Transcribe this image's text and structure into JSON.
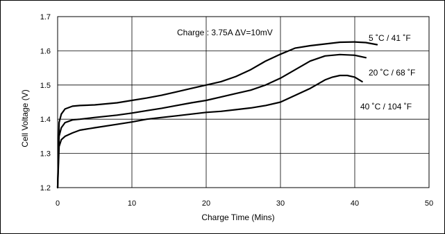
{
  "chart_data": {
    "type": "line",
    "xlabel": "Charge Time (Mins)",
    "ylabel": "Cell Voltage (V)",
    "xlim": [
      0,
      50
    ],
    "ylim": [
      1.2,
      1.7
    ],
    "x_ticks": [
      "0",
      "10",
      "20",
      "30",
      "40",
      "50"
    ],
    "y_ticks": [
      "1.2",
      "1.3",
      "1.4",
      "1.5",
      "1.6",
      "1.7"
    ],
    "grid": true,
    "annotation": "Charge : 3.75A  ΔV=10mV",
    "series": [
      {
        "name": "5 ˚C / 41 ˚F",
        "x": [
          0,
          0.2,
          0.5,
          1,
          2,
          3,
          5,
          8,
          10,
          12,
          14,
          16,
          18,
          20,
          22,
          24,
          26,
          28,
          30,
          32,
          34,
          36,
          38,
          40,
          41.5,
          43
        ],
        "y": [
          1.2,
          1.39,
          1.415,
          1.43,
          1.438,
          1.44,
          1.442,
          1.448,
          1.455,
          1.462,
          1.47,
          1.48,
          1.49,
          1.5,
          1.51,
          1.525,
          1.545,
          1.57,
          1.59,
          1.608,
          1.615,
          1.62,
          1.625,
          1.626,
          1.624,
          1.618
        ]
      },
      {
        "name": "20 ˚C / 68 ˚F",
        "x": [
          0,
          0.2,
          0.5,
          1,
          2,
          3,
          5,
          8,
          10,
          12,
          14,
          16,
          18,
          20,
          22,
          24,
          26,
          28,
          30,
          32,
          34,
          36,
          38,
          40,
          41.5
        ],
        "y": [
          1.2,
          1.35,
          1.375,
          1.39,
          1.398,
          1.4,
          1.405,
          1.412,
          1.418,
          1.425,
          1.432,
          1.44,
          1.448,
          1.455,
          1.465,
          1.475,
          1.485,
          1.5,
          1.52,
          1.545,
          1.57,
          1.585,
          1.589,
          1.587,
          1.58
        ]
      },
      {
        "name": "40 ˚C / 104 ˚F",
        "x": [
          0,
          0.2,
          0.5,
          1,
          2,
          3,
          5,
          8,
          10,
          12,
          14,
          16,
          18,
          20,
          22,
          24,
          26,
          28,
          30,
          32,
          34,
          36,
          37,
          38,
          39,
          40,
          41
        ],
        "y": [
          1.2,
          1.32,
          1.34,
          1.35,
          1.36,
          1.368,
          1.375,
          1.385,
          1.392,
          1.4,
          1.405,
          1.41,
          1.415,
          1.42,
          1.423,
          1.428,
          1.433,
          1.44,
          1.45,
          1.47,
          1.49,
          1.515,
          1.523,
          1.528,
          1.528,
          1.523,
          1.51
        ]
      }
    ]
  }
}
